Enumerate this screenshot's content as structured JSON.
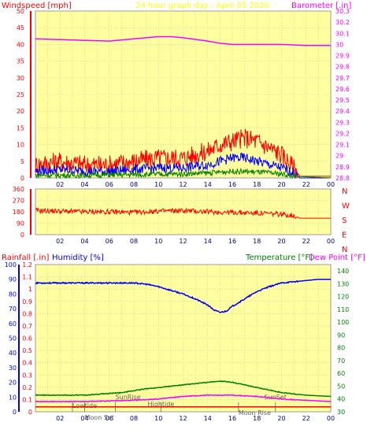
{
  "header": {
    "left": "Windspeed [mph]",
    "center": "24 hour graph day : April 05 2020",
    "right": "Barometer [.in]"
  },
  "bottom_header": {
    "rainfall": "Rainfall [.in]",
    "humidity": "Humidity [%]",
    "temperature": "Temperature [°F]",
    "dewpoint": "Dew Point [°F]"
  },
  "x_ticks": [
    "02",
    "04",
    "06",
    "08",
    "10",
    "12",
    "14",
    "16",
    "18",
    "20",
    "22",
    "00"
  ],
  "colors": {
    "plot_bg": "#ffffa0",
    "grid": "#b4b4b4",
    "red": "#ff0000",
    "blue": "#0000ff",
    "green": "#008000",
    "magenta": "#ff00ff",
    "axis_red": "#ff0000",
    "axis_blue": "#0000ff",
    "axis_green": "#008000",
    "header_yellow": "#ffff00"
  },
  "chart_data": [
    {
      "type": "line",
      "title": "",
      "panel": "wind_barometer",
      "ylabel_left": "Windspeed [mph]",
      "ylabel_right": "Barometer [.in]",
      "ylim_left": [
        0,
        50
      ],
      "ylim_right": [
        28.8,
        30.3
      ],
      "yticks_left": [
        0,
        5,
        10,
        15,
        20,
        25,
        30,
        35,
        40,
        45,
        50
      ],
      "yticks_right": [
        "28.8",
        "28.9",
        "29",
        "29.1",
        "29.2",
        "29.3",
        "29.4",
        "29.5",
        "29.6",
        "29.7",
        "29.8",
        "29.9",
        "30",
        "30.1",
        "30.2",
        "30.3"
      ],
      "x_hours": [
        0,
        24
      ],
      "grid": true,
      "series": [
        {
          "name": "Barometer",
          "color": "magenta",
          "axis": "right",
          "x": [
            0,
            3,
            6,
            8,
            10,
            11,
            12,
            14,
            15,
            16,
            18,
            20,
            22,
            24
          ],
          "y": [
            30.05,
            30.04,
            30.03,
            30.05,
            30.07,
            30.07,
            30.06,
            30.03,
            30.01,
            30.0,
            30.0,
            30.0,
            29.99,
            29.99
          ]
        },
        {
          "name": "Wind gust",
          "color": "red",
          "axis": "left",
          "x": [
            0,
            2,
            4,
            6,
            8,
            10,
            12,
            13,
            14,
            15,
            16,
            17,
            18,
            19,
            20,
            20.5,
            21,
            21.5,
            24
          ],
          "y": [
            4,
            5,
            4,
            4,
            5,
            6,
            6,
            7,
            8,
            10,
            11,
            12,
            11,
            9,
            7,
            5,
            3,
            0.5,
            0.5
          ]
        },
        {
          "name": "Wind average",
          "color": "blue",
          "axis": "left",
          "x": [
            0,
            2,
            4,
            6,
            8,
            10,
            12,
            14,
            15,
            16,
            17,
            18,
            19,
            20,
            21,
            21.5,
            24
          ],
          "y": [
            2,
            2.5,
            2,
            2,
            2.5,
            3,
            3,
            4,
            5,
            6,
            6,
            5,
            4,
            3,
            1.5,
            0,
            0
          ]
        },
        {
          "name": "Wind low",
          "color": "green",
          "axis": "left",
          "x": [
            0,
            4,
            8,
            12,
            14,
            16,
            18,
            20,
            21,
            24
          ],
          "y": [
            0.8,
            0.8,
            1,
            1.2,
            1.5,
            2,
            1.8,
            1.2,
            0.5,
            0
          ]
        }
      ]
    },
    {
      "type": "line",
      "title": "",
      "panel": "wind_direction",
      "ylim_left": [
        0,
        360
      ],
      "yticks_left": [
        0,
        90,
        180,
        270,
        360
      ],
      "right_labels": [
        "N",
        "W",
        "S",
        "E",
        "N"
      ],
      "x_hours": [
        0,
        24
      ],
      "grid": true,
      "series": [
        {
          "name": "Wind direction",
          "color": "red",
          "axis": "left",
          "x": [
            0,
            2,
            4,
            6,
            8,
            10,
            12,
            14,
            16,
            18,
            20,
            21,
            21.5,
            24
          ],
          "y": [
            190,
            185,
            180,
            180,
            175,
            185,
            190,
            180,
            175,
            170,
            160,
            150,
            130,
            130
          ]
        }
      ]
    },
    {
      "type": "line",
      "title": "",
      "panel": "rain_humidity_temp",
      "ylim_rain": [
        0,
        1.2
      ],
      "ylim_humidity": [
        0,
        100
      ],
      "ylim_temp": [
        30,
        145
      ],
      "yticks_rain": [
        "0",
        "0.1",
        "0.2",
        "0.3",
        "0.4",
        "0.5",
        "0.6",
        "0.7",
        "0.8",
        "0.9",
        "1",
        "1.1",
        "1.2"
      ],
      "yticks_humidity": [
        0,
        10,
        20,
        30,
        40,
        50,
        60,
        70,
        80,
        90,
        100
      ],
      "yticks_temp": [
        30,
        40,
        50,
        60,
        70,
        80,
        90,
        100,
        110,
        120,
        130,
        140
      ],
      "annotations": [
        "Lowtide",
        "Moon Set",
        "SunRise",
        "Hightide",
        "SunSet",
        "Moon Rise"
      ],
      "x_hours": [
        0,
        24
      ],
      "grid": true,
      "series": [
        {
          "name": "Humidity",
          "color": "blue",
          "axis": "humidity",
          "x": [
            0,
            8,
            9,
            10,
            11,
            12,
            13,
            14,
            14.5,
            15,
            15.5,
            16,
            17,
            18,
            19,
            20,
            21,
            22,
            23,
            24
          ],
          "y": [
            1.05,
            1.05,
            1.04,
            1.02,
            0.99,
            0.96,
            0.92,
            0.87,
            0.83,
            0.81,
            0.82,
            0.86,
            0.92,
            0.98,
            1.02,
            1.05,
            1.06,
            1.07,
            1.08,
            1.08
          ]
        },
        {
          "name": "Temperature",
          "color": "green",
          "axis": "temp",
          "x": [
            0,
            4,
            7,
            9,
            10,
            12,
            14,
            15,
            16,
            17,
            18,
            19,
            20,
            22,
            24
          ],
          "y": [
            43,
            43,
            45,
            48,
            49,
            51,
            53,
            54,
            53,
            51,
            49,
            47,
            45,
            43,
            42
          ]
        },
        {
          "name": "Dew Point",
          "color": "magenta",
          "axis": "temp",
          "x": [
            0,
            4,
            8,
            10,
            12,
            14,
            15,
            16,
            18,
            20,
            22,
            24
          ],
          "y": [
            38,
            38,
            39,
            40,
            42,
            43,
            43,
            43,
            42,
            40,
            39,
            38
          ]
        },
        {
          "name": "Rainfall",
          "color": "red",
          "axis": "rain",
          "x": [
            0,
            24
          ],
          "y": [
            0.04,
            0.04
          ]
        }
      ]
    }
  ]
}
